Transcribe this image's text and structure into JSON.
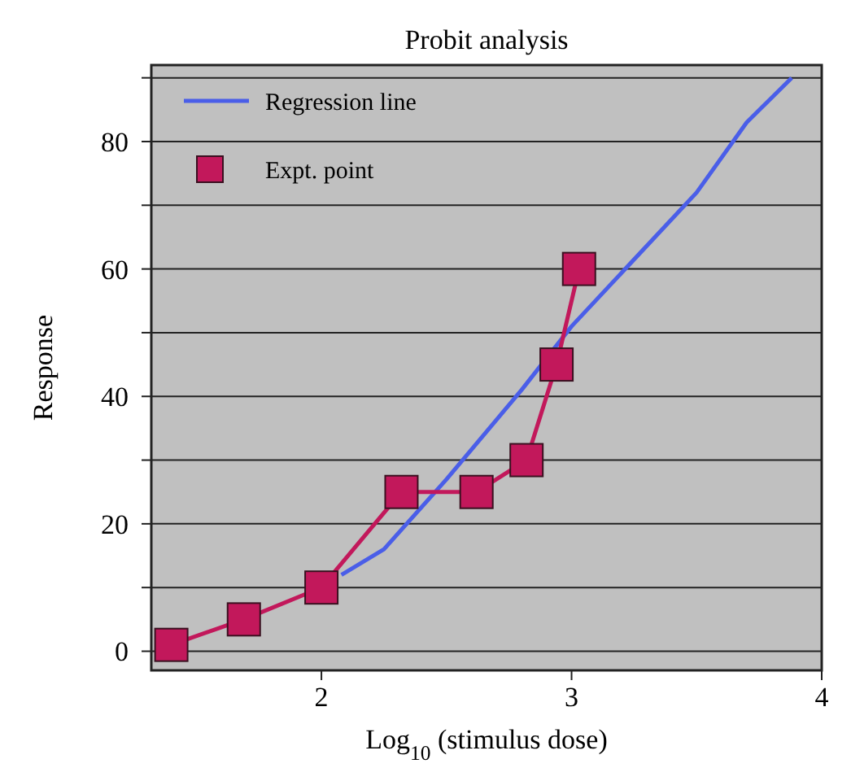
{
  "chart_data": {
    "type": "line",
    "title": "Probit analysis",
    "xlabel": "Log$_{10}$ (stimulus dose)",
    "ylabel": "Response",
    "xlim": [
      1.32,
      4
    ],
    "xticks": [
      2,
      3,
      4
    ],
    "ylim": [
      -3,
      92
    ],
    "yticks": [
      0,
      {
        "value": 10,
        "label": null
      },
      20,
      {
        "value": 30,
        "label": null
      },
      40,
      {
        "value": 50,
        "label": null
      },
      60,
      {
        "value": 70,
        "label": null
      },
      80,
      {
        "value": 90,
        "label": null
      }
    ],
    "grid": "y",
    "legend": "top left",
    "series": [
      {
        "name": "Regression line",
        "color": "#4a5ee8",
        "marker": "none",
        "x": [
          2.08,
          2.25,
          2.5,
          2.8,
          3.0,
          3.5,
          3.7,
          3.88
        ],
        "values": [
          12,
          16,
          27,
          41,
          51,
          72,
          83,
          90
        ]
      },
      {
        "name": "Expt. point",
        "color": "#c2185b",
        "marker": "square",
        "x": [
          1.4,
          1.69,
          2.0,
          2.32,
          2.62,
          2.82,
          2.94,
          3.03
        ],
        "values": [
          1,
          5,
          10,
          25,
          25,
          30,
          45,
          60
        ]
      }
    ]
  }
}
